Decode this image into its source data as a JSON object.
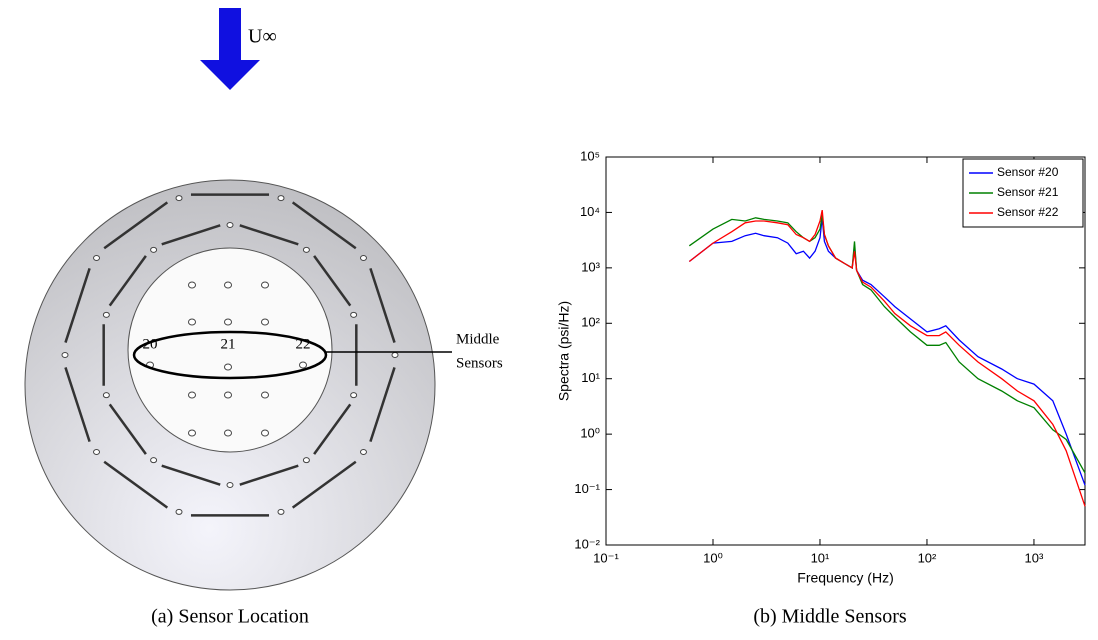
{
  "diagram": {
    "flow_label": "U∞",
    "sensor_labels": [
      "20",
      "21",
      "22"
    ],
    "callout": [
      "Middle",
      "Sensors"
    ]
  },
  "chart_data": {
    "type": "line",
    "log_x": true,
    "log_y": true,
    "xlabel": "Frequency (Hz)",
    "ylabel": "Spectra (psi/Hz)",
    "xlim": [
      0.1,
      3000
    ],
    "ylim": [
      0.01,
      100000
    ],
    "xticks": [
      {
        "value": 0.1,
        "label": "10⁻¹"
      },
      {
        "value": 1,
        "label": "10⁰"
      },
      {
        "value": 10,
        "label": "10¹"
      },
      {
        "value": 100,
        "label": "10²"
      },
      {
        "value": 1000,
        "label": "10³"
      }
    ],
    "yticks": [
      {
        "value": 0.01,
        "label": "10⁻²"
      },
      {
        "value": 0.1,
        "label": "10⁻¹"
      },
      {
        "value": 1,
        "label": "10⁰"
      },
      {
        "value": 10,
        "label": "10¹"
      },
      {
        "value": 100,
        "label": "10²"
      },
      {
        "value": 1000,
        "label": "10³"
      },
      {
        "value": 10000,
        "label": "10⁴"
      },
      {
        "value": 100000,
        "label": "10⁵"
      }
    ],
    "legend": "upper right",
    "x": [
      0.6,
      1,
      1.5,
      2,
      2.5,
      3,
      4,
      5,
      6,
      7,
      8,
      9,
      10,
      10.5,
      11,
      12,
      14,
      17,
      20,
      21,
      22,
      25,
      30,
      40,
      50,
      70,
      100,
      130,
      150,
      200,
      300,
      500,
      700,
      1000,
      1500,
      2000,
      3000
    ],
    "series": [
      {
        "name": "Sensor #20",
        "color": "#0000ff",
        "values": [
          1300,
          2800,
          3000,
          3800,
          4200,
          3800,
          3500,
          2800,
          1800,
          2000,
          1500,
          2000,
          3500,
          8000,
          3000,
          2000,
          1500,
          1200,
          1000,
          2500,
          900,
          600,
          500,
          300,
          200,
          120,
          70,
          80,
          90,
          50,
          25,
          15,
          10,
          8,
          4,
          1,
          0.12
        ]
      },
      {
        "name": "Sensor #21",
        "color": "#008000",
        "values": [
          2500,
          5000,
          7500,
          7000,
          8000,
          7500,
          7000,
          6500,
          4500,
          3500,
          3000,
          3500,
          5000,
          9000,
          4000,
          2500,
          1500,
          1200,
          1000,
          3000,
          900,
          500,
          400,
          200,
          130,
          70,
          40,
          40,
          45,
          20,
          10,
          6,
          4,
          3,
          1.2,
          0.8,
          0.2
        ]
      },
      {
        "name": "Sensor #22",
        "color": "#ff0000",
        "values": [
          1300,
          2800,
          4500,
          6500,
          7000,
          7000,
          6500,
          6000,
          4000,
          3500,
          3000,
          4000,
          7000,
          11000,
          4000,
          2500,
          1500,
          1200,
          1000,
          2000,
          900,
          550,
          450,
          250,
          150,
          90,
          60,
          60,
          70,
          40,
          20,
          10,
          6,
          4,
          1.5,
          0.5,
          0.05
        ]
      }
    ]
  },
  "captions": [
    "(a) Sensor Location",
    "(b) Middle Sensors"
  ]
}
